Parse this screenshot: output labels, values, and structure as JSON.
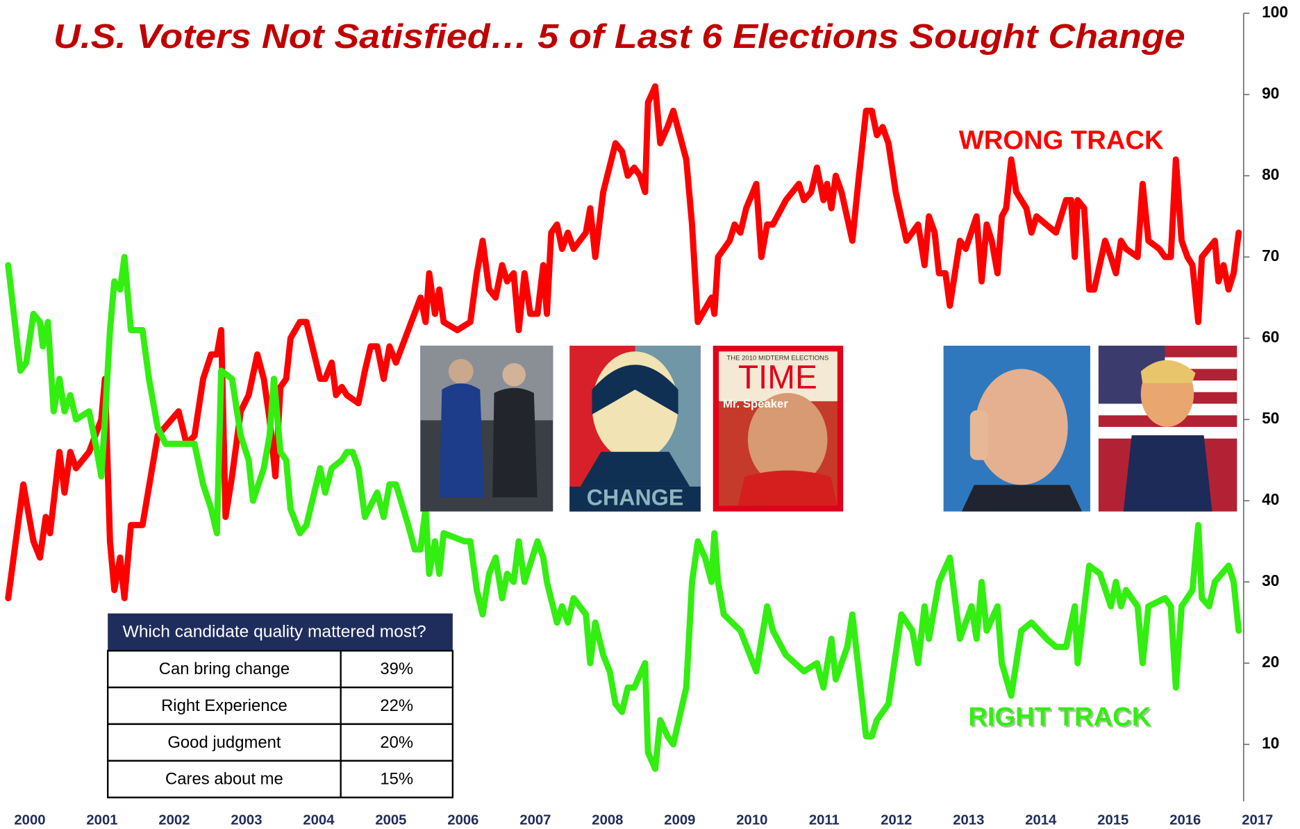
{
  "chart_data": {
    "type": "line",
    "title": "U.S. Voters Not Satisfied… 5 of Last 6 Elections Sought Change",
    "xlim": [
      1999.7,
      2017.5
    ],
    "xticks": [
      2000,
      2001,
      2002,
      2003,
      2004,
      2005,
      2006,
      2007,
      2008,
      2009,
      2010,
      2011,
      2012,
      2013,
      2014,
      2015,
      2016,
      2017
    ],
    "ylim": [
      3,
      100
    ],
    "yticks": [
      10,
      20,
      30,
      40,
      50,
      60,
      70,
      80,
      90,
      100
    ],
    "grid": false,
    "series": [
      {
        "name": "WRONG TRACK",
        "color": "#ff0000",
        "x": [
          1999.7,
          1999.91,
          2000.05,
          2000.14,
          2000.22,
          2000.28,
          2000.41,
          2000.48,
          2000.56,
          2000.64,
          2000.82,
          2000.99,
          2001.04,
          2001.11,
          2001.17,
          2001.25,
          2001.31,
          2001.4,
          2001.56,
          2001.77,
          2002.06,
          2002.17,
          2002.28,
          2002.4,
          2002.51,
          2002.59,
          2002.65,
          2002.71,
          2002.8,
          2002.92,
          2003.03,
          2003.15,
          2003.24,
          2003.32,
          2003.4,
          2003.47,
          2003.55,
          2003.61,
          2003.74,
          2003.83,
          2004.02,
          2004.09,
          2004.18,
          2004.24,
          2004.32,
          2004.39,
          2004.55,
          2004.64,
          2004.72,
          2004.81,
          2004.9,
          2004.98,
          2005.07,
          2005.24,
          2005.41,
          2005.48,
          2005.53,
          2005.61,
          2005.67,
          2005.73,
          2005.92,
          2006.1,
          2006.19,
          2006.27,
          2006.36,
          2006.45,
          2006.54,
          2006.61,
          2006.7,
          2006.77,
          2006.85,
          2006.93,
          2007.03,
          2007.11,
          2007.16,
          2007.22,
          2007.3,
          2007.37,
          2007.45,
          2007.53,
          2007.7,
          2007.76,
          2007.83,
          2007.94,
          2008.11,
          2008.2,
          2008.28,
          2008.37,
          2008.45,
          2008.52,
          2008.56,
          2008.66,
          2008.73,
          2008.83,
          2008.91,
          2009.09,
          2009.17,
          2009.25,
          2009.44,
          2009.48,
          2009.53,
          2009.69,
          2009.76,
          2009.84,
          2009.92,
          2010.06,
          2010.13,
          2010.21,
          2010.29,
          2010.47,
          2010.65,
          2010.72,
          2010.82,
          2010.9,
          2010.99,
          2011.04,
          2011.1,
          2011.16,
          2011.24,
          2011.39,
          2011.47,
          2011.58,
          2011.66,
          2011.73,
          2011.81,
          2011.89,
          2011.99,
          2012.14,
          2012.3,
          2012.39,
          2012.45,
          2012.53,
          2012.59,
          2012.68,
          2012.74,
          2012.88,
          2012.96,
          2013.11,
          2013.18,
          2013.25,
          2013.32,
          2013.4,
          2013.46,
          2013.52,
          2013.59,
          2013.66,
          2013.8,
          2013.87,
          2013.94,
          2014.21,
          2014.35,
          2014.42,
          2014.47,
          2014.51,
          2014.6,
          2014.67,
          2014.74,
          2014.89,
          2014.97,
          2015.04,
          2015.11,
          2015.18,
          2015.34,
          2015.41,
          2015.49,
          2015.64,
          2015.72,
          2015.8,
          2015.87,
          2015.95,
          2016.03,
          2016.1,
          2016.18,
          2016.23,
          2016.41,
          2016.46,
          2016.53,
          2016.6,
          2016.67,
          2016.74
        ],
        "values": [
          28,
          42,
          35,
          33,
          38,
          36,
          46,
          41,
          46,
          44,
          46,
          50,
          55,
          35,
          29,
          33,
          28,
          37,
          37,
          48,
          51,
          47,
          48,
          55,
          58,
          58,
          61,
          38,
          43,
          51,
          53,
          58,
          55,
          50,
          43,
          54,
          55,
          60,
          62,
          62,
          55,
          55,
          57,
          53,
          54,
          53,
          52,
          56,
          59,
          59,
          55,
          59,
          57,
          61,
          65,
          62,
          68,
          63,
          66,
          62,
          61,
          62,
          68,
          72,
          66,
          65,
          69,
          67,
          68,
          61,
          68,
          63,
          63,
          69,
          63,
          73,
          74,
          71,
          73,
          71,
          73,
          76,
          70,
          78,
          84,
          83,
          80,
          81,
          80,
          78,
          89,
          91,
          84,
          86,
          88,
          82,
          74,
          62,
          65,
          63,
          70,
          72,
          74,
          73,
          76,
          79,
          70,
          74,
          74,
          77,
          79,
          77,
          78,
          81,
          77,
          79,
          76,
          80,
          78,
          72,
          79,
          88,
          88,
          85,
          86,
          84,
          78,
          72,
          74,
          69,
          75,
          73,
          68,
          68,
          64,
          72,
          71,
          75,
          67,
          74,
          72,
          68,
          75,
          76,
          82,
          78,
          76,
          73,
          75,
          73,
          77,
          77,
          70,
          77,
          76,
          66,
          66,
          72,
          70,
          68,
          72,
          71,
          70,
          79,
          72,
          71,
          70,
          70,
          82,
          72,
          70,
          69,
          62,
          70,
          72,
          67,
          69,
          66,
          68,
          73
        ]
      },
      {
        "name": "RIGHT TRACK",
        "color": "#33ee11",
        "x": [
          1999.7,
          1999.87,
          1999.95,
          2000.05,
          2000.14,
          2000.18,
          2000.25,
          2000.33,
          2000.41,
          2000.48,
          2000.56,
          2000.64,
          2000.82,
          2000.91,
          2000.99,
          2001.04,
          2001.11,
          2001.17,
          2001.25,
          2001.31,
          2001.4,
          2001.56,
          2001.65,
          2001.77,
          2001.88,
          2002.28,
          2002.4,
          2002.51,
          2002.59,
          2002.65,
          2002.8,
          2002.92,
          2003.03,
          2003.09,
          2003.24,
          2003.32,
          2003.38,
          2003.47,
          2003.55,
          2003.61,
          2003.74,
          2003.83,
          2004.02,
          2004.09,
          2004.18,
          2004.32,
          2004.39,
          2004.47,
          2004.55,
          2004.64,
          2004.81,
          2004.9,
          2004.98,
          2005.07,
          2005.24,
          2005.33,
          2005.41,
          2005.48,
          2005.53,
          2005.61,
          2005.67,
          2005.73,
          2006.02,
          2006.1,
          2006.19,
          2006.27,
          2006.36,
          2006.45,
          2006.54,
          2006.61,
          2006.7,
          2006.77,
          2006.85,
          2007.03,
          2007.11,
          2007.16,
          2007.3,
          2007.37,
          2007.45,
          2007.53,
          2007.7,
          2007.76,
          2007.83,
          2007.94,
          2008.03,
          2008.11,
          2008.2,
          2008.28,
          2008.37,
          2008.52,
          2008.56,
          2008.66,
          2008.73,
          2008.83,
          2008.91,
          2009.09,
          2009.17,
          2009.25,
          2009.35,
          2009.44,
          2009.48,
          2009.53,
          2009.61,
          2009.84,
          2010.06,
          2010.21,
          2010.29,
          2010.47,
          2010.72,
          2010.9,
          2010.99,
          2011.1,
          2011.16,
          2011.32,
          2011.39,
          2011.53,
          2011.58,
          2011.66,
          2011.73,
          2011.89,
          2012.07,
          2012.22,
          2012.3,
          2012.39,
          2012.45,
          2012.59,
          2012.74,
          2012.88,
          2013.04,
          2013.11,
          2013.18,
          2013.25,
          2013.4,
          2013.46,
          2013.59,
          2013.73,
          2013.87,
          2014.08,
          2014.21,
          2014.35,
          2014.47,
          2014.51,
          2014.67,
          2014.82,
          2014.97,
          2015.04,
          2015.11,
          2015.18,
          2015.34,
          2015.41,
          2015.49,
          2015.72,
          2015.8,
          2015.87,
          2015.95,
          2016.1,
          2016.18,
          2016.23,
          2016.33,
          2016.41,
          2016.6,
          2016.67,
          2016.74
        ],
        "values": [
          69,
          56,
          57,
          63,
          62,
          59,
          62,
          51,
          55,
          51,
          53,
          50,
          51,
          47,
          43,
          50,
          61,
          67,
          66,
          70,
          61,
          61,
          55,
          49,
          47,
          47,
          42,
          39,
          36,
          56,
          55,
          48,
          45,
          40,
          44,
          48,
          55,
          46,
          45,
          39,
          36,
          37,
          44,
          41,
          44,
          45,
          46,
          46,
          44,
          38,
          41,
          38,
          42,
          42,
          37,
          34,
          34,
          39,
          31,
          35,
          31,
          36,
          35,
          35,
          29,
          26,
          31,
          33,
          28,
          31,
          30,
          35,
          30,
          35,
          33,
          30,
          25,
          27,
          25,
          28,
          26,
          20,
          25,
          21,
          19,
          15,
          14,
          17,
          17,
          20,
          9,
          7,
          13,
          11,
          10,
          17,
          30,
          35,
          33,
          30,
          36,
          30,
          26,
          24,
          19,
          27,
          24,
          21,
          19,
          20,
          17,
          23,
          18,
          22,
          26,
          15,
          11,
          11,
          13,
          15,
          26,
          24,
          20,
          27,
          23,
          30,
          33,
          23,
          27,
          23,
          30,
          24,
          27,
          20,
          16,
          24,
          25,
          23,
          22,
          22,
          27,
          20,
          32,
          31,
          27,
          30,
          27,
          29,
          27,
          20,
          27,
          28,
          27,
          17,
          27,
          29,
          37,
          28,
          27,
          30,
          32,
          30,
          24
        ]
      }
    ]
  },
  "images": [
    {
      "caption": "CHANGE"
    },
    {
      "masthead": "TIME",
      "banner": "THE 2010 MIDTERM ELECTIONS",
      "headline": "Mr. Speaker"
    }
  ],
  "table": {
    "header": "Which candidate quality mattered most?",
    "rows": [
      [
        "Can bring change",
        "39%"
      ],
      [
        "Right Experience",
        "22%"
      ],
      [
        "Good judgment",
        "20%"
      ],
      [
        "Cares about me",
        "15%"
      ]
    ]
  }
}
